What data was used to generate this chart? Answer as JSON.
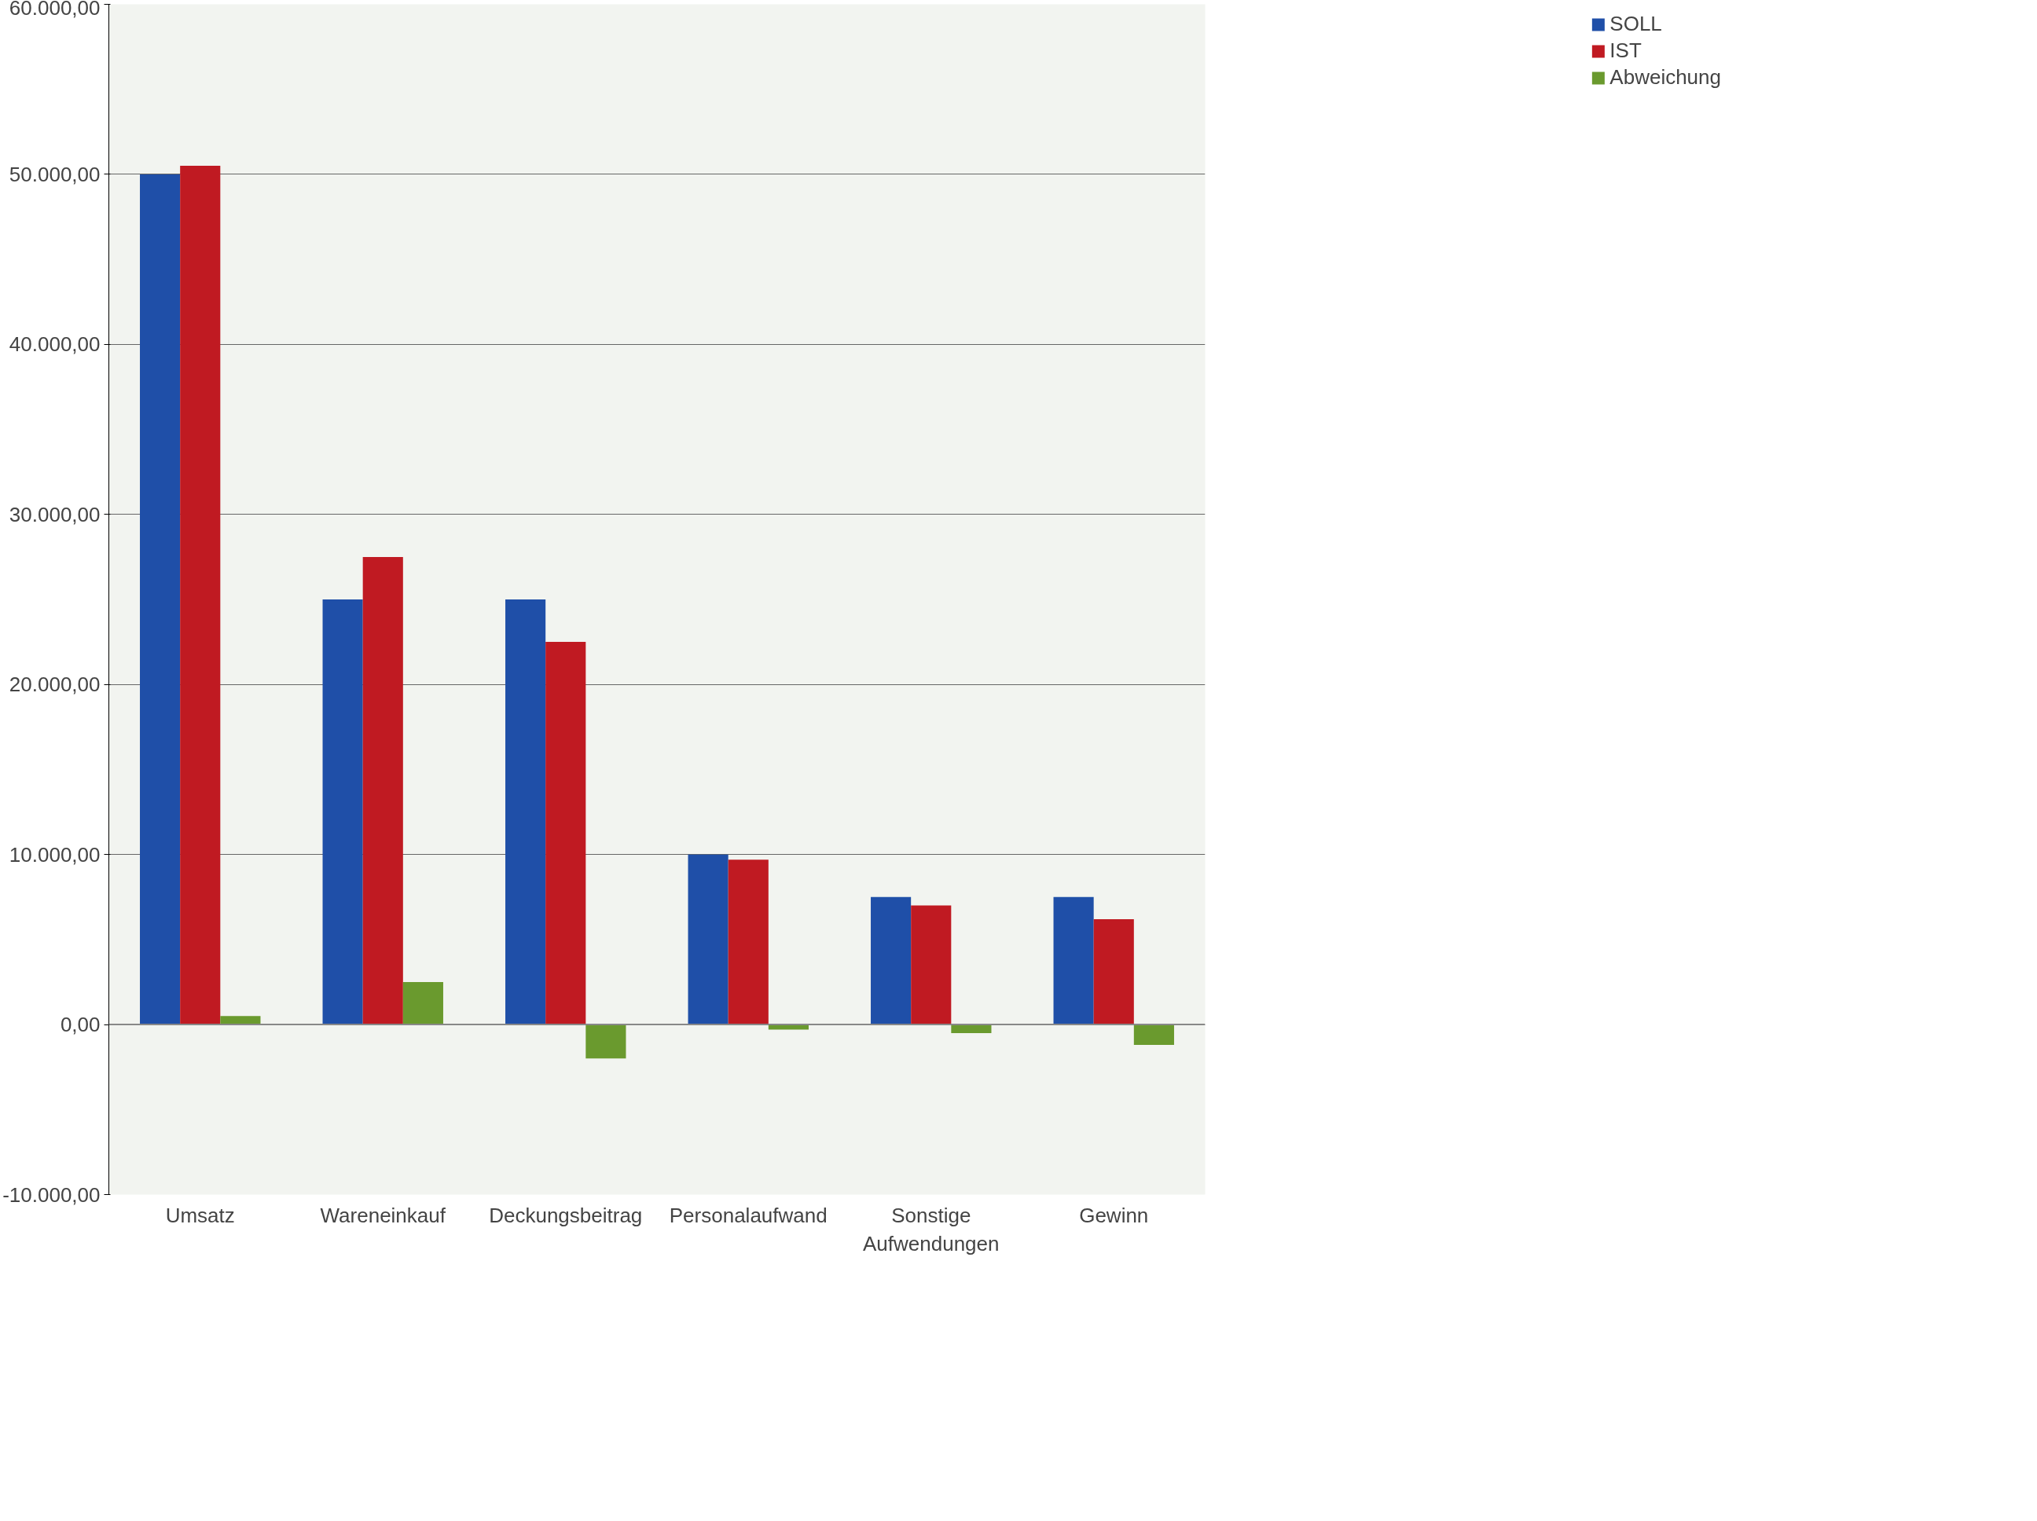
{
  "chart_data": {
    "type": "bar",
    "categories": [
      "Umsatz",
      "Wareneinkauf",
      "Deckungsbeitrag",
      "Personalaufwand",
      "Sonstige Aufwendungen",
      "Gewinn"
    ],
    "series": [
      {
        "name": "SOLL",
        "color": "#1f4fa8",
        "values": [
          50000,
          25000,
          25000,
          10000,
          7500,
          7500
        ]
      },
      {
        "name": "IST",
        "color": "#c01a22",
        "values": [
          50500,
          27500,
          22500,
          9700,
          7000,
          6200
        ]
      },
      {
        "name": "Abweichung",
        "color": "#6a9a2e",
        "values": [
          500,
          2500,
          -2000,
          -300,
          -500,
          -1200
        ]
      }
    ],
    "ylim": [
      -10000,
      60000
    ],
    "yticks": [
      {
        "value": -10000,
        "label": "-10.000,00"
      },
      {
        "value": 0,
        "label": "0,00"
      },
      {
        "value": 10000,
        "label": "10.000,00"
      },
      {
        "value": 20000,
        "label": "20.000,00"
      },
      {
        "value": 30000,
        "label": "30.000,00"
      },
      {
        "value": 40000,
        "label": "40.000,00"
      },
      {
        "value": 50000,
        "label": "50.000,00"
      },
      {
        "value": 60000,
        "label": "60.000,00"
      }
    ],
    "grid": "y",
    "legend": "right"
  }
}
